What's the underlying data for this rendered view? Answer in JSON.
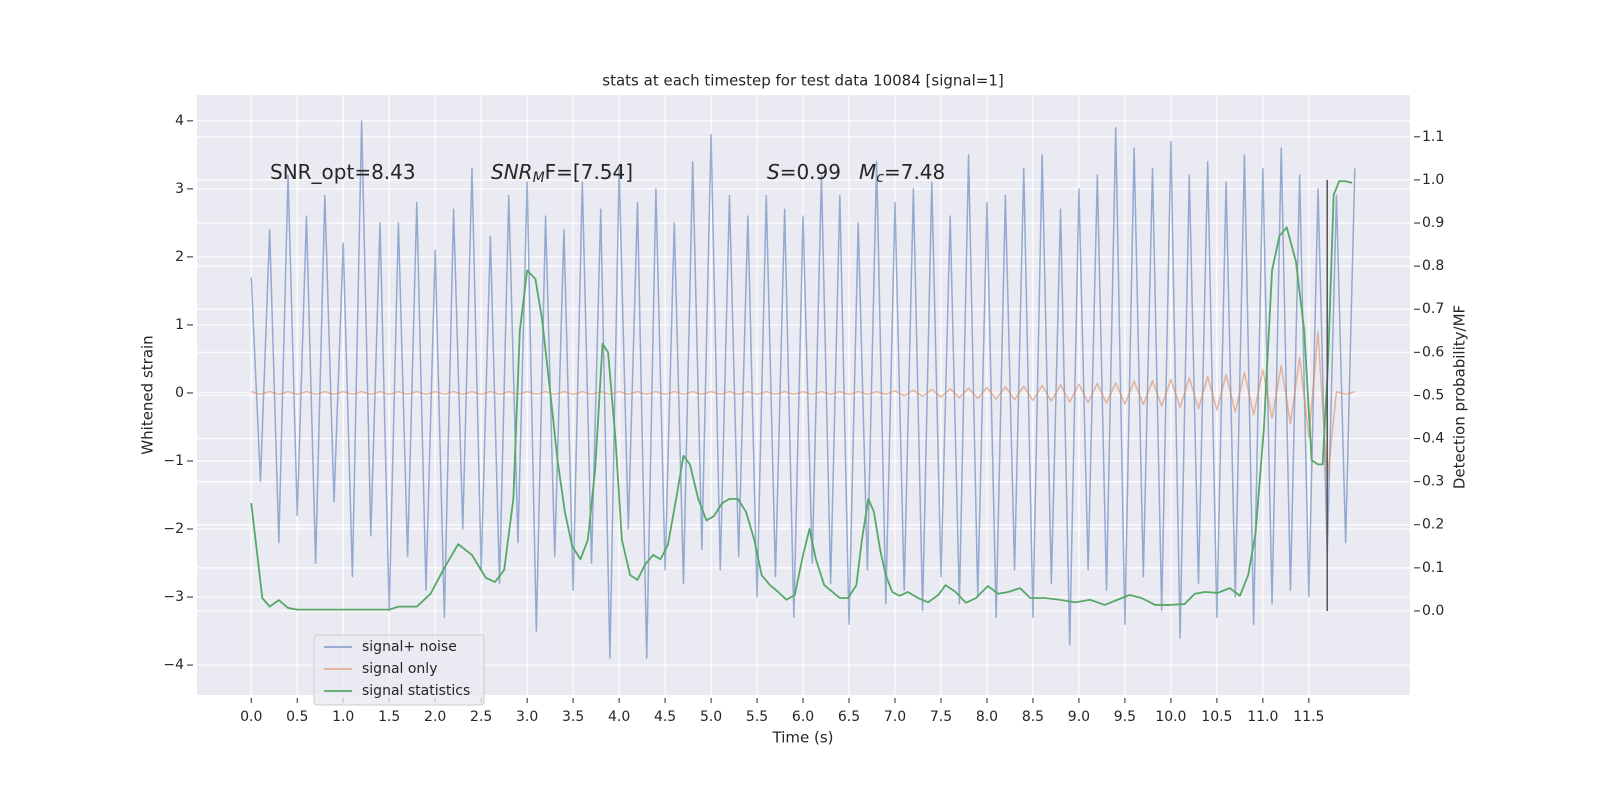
{
  "chart_data": {
    "type": "line",
    "title": "stats at each timestep for test data 10084 [signal=1]",
    "xlabel": "Time (s)",
    "ylabel": "Whitened strain",
    "y2label": "Detection probability/MF",
    "annotations": [
      {
        "text": "SNR_opt=8.43"
      },
      {
        "italic": "SNR",
        "sub": "M",
        "text": "F=[7.54]"
      },
      {
        "italic": "S",
        "text": "=0.99"
      },
      {
        "italic": "M",
        "sub": "c",
        "text": "=7.48"
      }
    ],
    "xlim": [
      -0.59,
      12.6
    ],
    "ylim": [
      -4.44,
      4.38
    ],
    "y2lim": [
      -0.195,
      1.197
    ],
    "grid": true,
    "legend": "lower left",
    "xticks": [
      {
        "value": 0,
        "label": "0.0"
      },
      {
        "value": 0.5,
        "label": "0.5"
      },
      {
        "value": 1,
        "label": "1.0"
      },
      {
        "value": 1.5,
        "label": "1.5"
      },
      {
        "value": 2,
        "label": "2.0"
      },
      {
        "value": 2.5,
        "label": "2.5"
      },
      {
        "value": 3,
        "label": "3.0"
      },
      {
        "value": 3.5,
        "label": "3.5"
      },
      {
        "value": 4,
        "label": "4.0"
      },
      {
        "value": 4.5,
        "label": "4.5"
      },
      {
        "value": 5,
        "label": "5.0"
      },
      {
        "value": 5.5,
        "label": "5.5"
      },
      {
        "value": 6,
        "label": "6.0"
      },
      {
        "value": 6.5,
        "label": "6.5"
      },
      {
        "value": 7,
        "label": "7.0"
      },
      {
        "value": 7.5,
        "label": "7.5"
      },
      {
        "value": 8,
        "label": "8.0"
      },
      {
        "value": 8.5,
        "label": "8.5"
      },
      {
        "value": 9,
        "label": "9.0"
      },
      {
        "value": 9.5,
        "label": "9.5"
      },
      {
        "value": 10,
        "label": "10.0"
      },
      {
        "value": 10.5,
        "label": "10.5"
      },
      {
        "value": 11,
        "label": "11.0"
      },
      {
        "value": 11.5,
        "label": "11.5"
      }
    ],
    "yticks": [
      {
        "value": -4,
        "label": "−4"
      },
      {
        "value": -3,
        "label": "−3"
      },
      {
        "value": -2,
        "label": "−2"
      },
      {
        "value": -1,
        "label": "−1"
      },
      0,
      1,
      2,
      3,
      4
    ],
    "y2ticks": [
      {
        "value": 0,
        "label": "0.0"
      },
      {
        "value": 0.1,
        "label": "0.1"
      },
      {
        "value": 0.2,
        "label": "0.2"
      },
      {
        "value": 0.3,
        "label": "0.3"
      },
      {
        "value": 0.4,
        "label": "0.4"
      },
      {
        "value": 0.5,
        "label": "0.5"
      },
      {
        "value": 0.6,
        "label": "0.6"
      },
      {
        "value": 0.7,
        "label": "0.7"
      },
      {
        "value": 0.8,
        "label": "0.8"
      },
      {
        "value": 0.9,
        "label": "0.9"
      },
      {
        "value": 1,
        "label": "1.0"
      },
      {
        "value": 1.1,
        "label": "1.1"
      }
    ],
    "vline": {
      "x": 11.7,
      "ymin": 0,
      "ymax": 1,
      "color": "#555555"
    },
    "series": [
      {
        "name": "signal+ noise",
        "color": "#4c72b0",
        "x": [
          0,
          0.1,
          0.2,
          0.3,
          0.4,
          0.5,
          0.6,
          0.7,
          0.8,
          0.9,
          1,
          1.1,
          1.2,
          1.3,
          1.4,
          1.5,
          1.6,
          1.7,
          1.8,
          1.9,
          2,
          2.1,
          2.2,
          2.3,
          2.4,
          2.5,
          2.6,
          2.7,
          2.8,
          2.9,
          3,
          3.1,
          3.2,
          3.3,
          3.4,
          3.5,
          3.6,
          3.7,
          3.8,
          3.9,
          4,
          4.1,
          4.2,
          4.3,
          4.4,
          4.5,
          4.6,
          4.7,
          4.8,
          4.9,
          5,
          5.1,
          5.2,
          5.3,
          5.4,
          5.5,
          5.6,
          5.7,
          5.8,
          5.9,
          6,
          6.1,
          6.2,
          6.3,
          6.4,
          6.5,
          6.6,
          6.7,
          6.8,
          6.9,
          7,
          7.1,
          7.2,
          7.3,
          7.4,
          7.5,
          7.6,
          7.7,
          7.8,
          7.9,
          8,
          8.1,
          8.2,
          8.3,
          8.4,
          8.5,
          8.6,
          8.7,
          8.8,
          8.9,
          9,
          9.1,
          9.2,
          9.3,
          9.4,
          9.5,
          9.6,
          9.7,
          9.8,
          9.9,
          10,
          10.1,
          10.2,
          10.3,
          10.4,
          10.5,
          10.6,
          10.7,
          10.8,
          10.9,
          11,
          11.1,
          11.2,
          11.3,
          11.4,
          11.5,
          11.6,
          11.7,
          11.8,
          11.9,
          12
        ],
        "values": [
          1.7,
          -1.3,
          2.4,
          -2.2,
          3.2,
          -1.8,
          2.6,
          -2.5,
          2.9,
          -1.6,
          2.2,
          -2.7,
          4.0,
          -2.1,
          2.5,
          -3.2,
          2.5,
          -2.4,
          2.8,
          -2.9,
          2.1,
          -3.3,
          2.7,
          -2.0,
          3.3,
          -2.6,
          2.3,
          -2.8,
          2.9,
          -2.2,
          3.1,
          -3.5,
          2.6,
          -2.4,
          2.4,
          -2.9,
          3.1,
          -2.5,
          2.7,
          -3.9,
          3.3,
          -2.0,
          2.8,
          -3.9,
          3.0,
          -2.6,
          2.5,
          -2.8,
          3.4,
          -2.3,
          3.8,
          -2.6,
          2.9,
          -2.4,
          2.6,
          -3.0,
          2.9,
          -2.7,
          2.7,
          -3.3,
          2.6,
          -2.5,
          3.2,
          -2.8,
          2.9,
          -3.4,
          2.5,
          -2.6,
          3.4,
          -3.1,
          2.8,
          -2.9,
          3.0,
          -3.2,
          3.1,
          -2.7,
          2.6,
          -3.1,
          3.5,
          -3.0,
          2.8,
          -3.3,
          2.9,
          -2.6,
          3.3,
          -3.3,
          3.5,
          -2.8,
          2.7,
          -3.7,
          3.0,
          -2.6,
          3.2,
          -2.9,
          3.9,
          -3.4,
          3.6,
          -2.7,
          3.3,
          -3.2,
          3.7,
          -3.6,
          3.2,
          -2.8,
          3.4,
          -3.3,
          3.1,
          -3.0,
          3.5,
          -3.4,
          3.3,
          -3.1,
          3.6,
          -2.9,
          3.2,
          -3.0,
          3.0,
          -2.4,
          2.9,
          -2.2,
          3.3
        ]
      },
      {
        "name": "signal only",
        "color": "#dd8452",
        "x": [
          0,
          0.1,
          0.2,
          0.3,
          0.4,
          0.5,
          0.6,
          0.7,
          0.8,
          0.9,
          1,
          1.1,
          1.2,
          1.3,
          1.4,
          1.5,
          1.6,
          1.7,
          1.8,
          1.9,
          2,
          2.1,
          2.2,
          2.3,
          2.4,
          2.5,
          2.6,
          2.7,
          2.8,
          2.9,
          3,
          3.1,
          3.2,
          3.3,
          3.4,
          3.5,
          3.6,
          3.7,
          3.8,
          3.9,
          4,
          4.1,
          4.2,
          4.3,
          4.4,
          4.5,
          4.6,
          4.7,
          4.8,
          4.9,
          5,
          5.1,
          5.2,
          5.3,
          5.4,
          5.5,
          5.6,
          5.7,
          5.8,
          5.9,
          6,
          6.1,
          6.2,
          6.3,
          6.4,
          6.5,
          6.6,
          6.7,
          6.8,
          6.9,
          7,
          7.1,
          7.2,
          7.3,
          7.4,
          7.5,
          7.6,
          7.7,
          7.8,
          7.9,
          8,
          8.1,
          8.2,
          8.3,
          8.4,
          8.5,
          8.6,
          8.7,
          8.8,
          8.9,
          9,
          9.1,
          9.2,
          9.3,
          9.4,
          9.5,
          9.6,
          9.7,
          9.8,
          9.9,
          10,
          10.1,
          10.2,
          10.3,
          10.4,
          10.5,
          10.6,
          10.7,
          10.8,
          10.9,
          11,
          11.1,
          11.2,
          11.3,
          11.4,
          11.5,
          11.6,
          11.7,
          11.8,
          11.9,
          12
        ],
        "values": [
          0.02,
          -0.02,
          0.02,
          -0.02,
          0.02,
          -0.02,
          0.02,
          -0.02,
          0.02,
          -0.02,
          0.02,
          -0.02,
          0.02,
          -0.02,
          0.02,
          -0.02,
          0.02,
          -0.02,
          0.02,
          -0.02,
          0.02,
          -0.02,
          0.02,
          -0.02,
          0.02,
          -0.02,
          0.02,
          -0.02,
          0.02,
          -0.02,
          0.02,
          -0.02,
          0.02,
          -0.02,
          0.02,
          -0.02,
          0.02,
          -0.02,
          0.02,
          -0.02,
          0.02,
          -0.02,
          0.02,
          -0.02,
          0.02,
          -0.02,
          0.02,
          -0.02,
          0.02,
          -0.02,
          0.02,
          -0.02,
          0.02,
          -0.02,
          0.02,
          -0.02,
          0.02,
          -0.02,
          0.02,
          -0.02,
          0.02,
          -0.02,
          0.02,
          -0.02,
          0.02,
          -0.02,
          0.02,
          -0.02,
          0.02,
          -0.02,
          0.03,
          -0.04,
          0.04,
          -0.05,
          0.05,
          -0.06,
          0.06,
          -0.07,
          0.07,
          -0.08,
          0.08,
          -0.09,
          0.09,
          -0.1,
          0.1,
          -0.11,
          0.11,
          -0.12,
          0.12,
          -0.13,
          0.13,
          -0.14,
          0.14,
          -0.15,
          0.15,
          -0.16,
          0.17,
          -0.17,
          0.18,
          -0.19,
          0.2,
          -0.21,
          0.22,
          -0.23,
          0.24,
          -0.25,
          0.27,
          -0.28,
          0.3,
          -0.32,
          0.34,
          -0.37,
          0.4,
          -0.45,
          0.52,
          -0.65,
          0.9,
          -1.3,
          0.02,
          -0.02,
          0.02
        ]
      },
      {
        "name": "signal statistics",
        "color": "#55a868",
        "axis": "y2",
        "x": [
          0,
          0.12,
          0.2,
          0.3,
          0.4,
          0.5,
          0.7,
          0.9,
          1.1,
          1.3,
          1.5,
          1.6,
          1.8,
          1.95,
          2.1,
          2.25,
          2.4,
          2.55,
          2.65,
          2.75,
          2.85,
          2.92,
          3,
          3.09,
          3.16,
          3.25,
          3.33,
          3.41,
          3.49,
          3.58,
          3.66,
          3.74,
          3.82,
          3.88,
          3.96,
          4.03,
          4.12,
          4.2,
          4.28,
          4.37,
          4.45,
          4.53,
          4.62,
          4.7,
          4.77,
          4.86,
          4.95,
          5.03,
          5.12,
          5.2,
          5.29,
          5.38,
          5.47,
          5.55,
          5.64,
          5.73,
          5.82,
          5.91,
          6,
          6.07,
          6.14,
          6.23,
          6.32,
          6.4,
          6.49,
          6.58,
          6.64,
          6.71,
          6.77,
          6.84,
          6.9,
          6.97,
          7.05,
          7.14,
          7.25,
          7.36,
          7.47,
          7.55,
          7.66,
          7.77,
          7.88,
          8.01,
          8.12,
          8.23,
          8.36,
          8.47,
          8.63,
          8.79,
          8.96,
          9.12,
          9.28,
          9.42,
          9.55,
          9.68,
          9.83,
          9.99,
          10.15,
          10.26,
          10.37,
          10.51,
          10.64,
          10.75,
          10.84,
          10.92,
          11.01,
          11.1,
          11.18,
          11.26,
          11.36,
          11.45,
          11.53,
          11.6,
          11.65,
          11.71,
          11.77,
          11.83,
          11.9,
          11.97
        ],
        "values": [
          0.25,
          0.03,
          0.01,
          0.025,
          0.007,
          0.003,
          0.003,
          0.003,
          0.003,
          0.003,
          0.003,
          0.01,
          0.01,
          0.04,
          0.1,
          0.155,
          0.13,
          0.077,
          0.067,
          0.095,
          0.26,
          0.65,
          0.79,
          0.77,
          0.68,
          0.51,
          0.35,
          0.23,
          0.15,
          0.12,
          0.165,
          0.33,
          0.62,
          0.6,
          0.4,
          0.165,
          0.083,
          0.072,
          0.107,
          0.13,
          0.12,
          0.153,
          0.26,
          0.36,
          0.34,
          0.26,
          0.21,
          0.22,
          0.25,
          0.26,
          0.26,
          0.23,
          0.165,
          0.083,
          0.06,
          0.044,
          0.026,
          0.037,
          0.13,
          0.19,
          0.12,
          0.06,
          0.044,
          0.03,
          0.03,
          0.06,
          0.165,
          0.26,
          0.23,
          0.14,
          0.083,
          0.044,
          0.035,
          0.044,
          0.03,
          0.02,
          0.037,
          0.06,
          0.044,
          0.019,
          0.03,
          0.058,
          0.04,
          0.044,
          0.053,
          0.03,
          0.03,
          0.026,
          0.02,
          0.026,
          0.014,
          0.026,
          0.037,
          0.03,
          0.014,
          0.014,
          0.016,
          0.04,
          0.044,
          0.042,
          0.053,
          0.035,
          0.083,
          0.18,
          0.42,
          0.79,
          0.87,
          0.89,
          0.81,
          0.65,
          0.35,
          0.34,
          0.34,
          0.58,
          0.965,
          0.997,
          0.997,
          0.993
        ]
      }
    ]
  }
}
